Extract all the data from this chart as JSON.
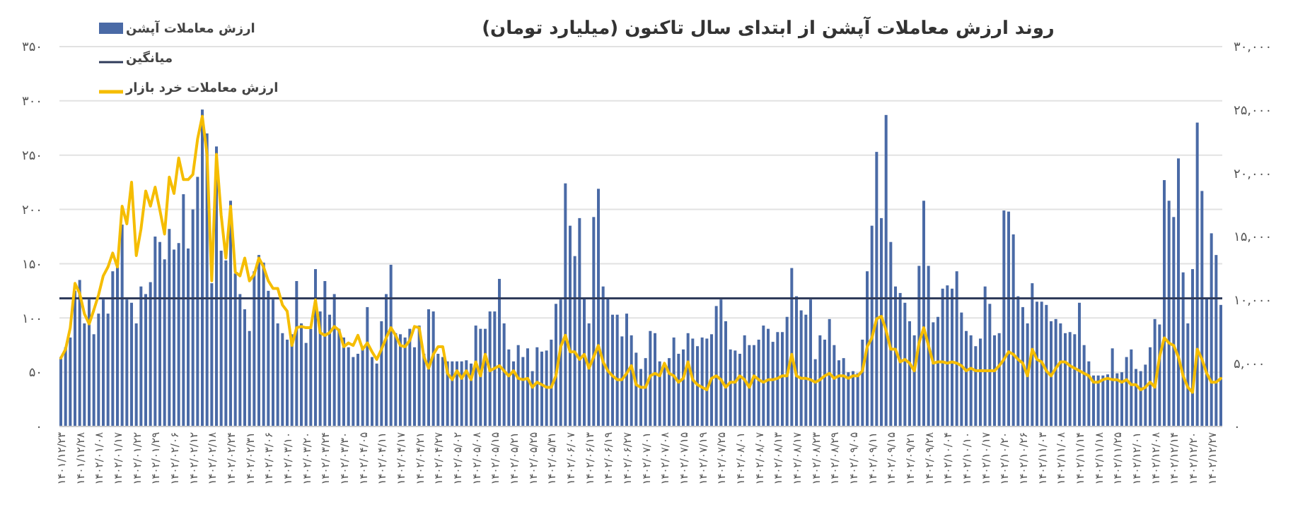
{
  "chart_data": {
    "type": "bar",
    "title": "روند ارزش معاملات آپشن از ابتدای سال تاکنون (میلیارد تومان)",
    "categories": [
      "۱۴۰۱/۱۲/۲۳",
      null,
      null,
      null,
      "۱۴۰۱/۱۲/۲۸",
      null,
      null,
      null,
      "۱۴۰۲/۰۱/۰۸",
      null,
      null,
      null,
      "۱۴۰۲/۰۱/۱۷",
      null,
      null,
      null,
      "۱۴۰۲/۰۱/۲۲",
      null,
      null,
      null,
      "۱۴۰۲/۰۱/۲۹",
      null,
      null,
      null,
      "۱۴۰۲/۰۲/۰۶",
      null,
      null,
      null,
      "۱۴۰۲/۰۲/۱۲",
      null,
      null,
      null,
      "۱۴۰۲/۰۲/۱۸",
      null,
      null,
      null,
      "۱۴۰۲/۰۲/۲۴",
      null,
      null,
      null,
      "۱۴۰۲/۰۲/۳۱",
      null,
      null,
      null,
      "۱۴۰۲/۰۳/۰۶",
      null,
      null,
      null,
      "۱۴۰۲/۰۳/۱۰",
      null,
      null,
      null,
      "۱۴۰۲/۰۳/۲۰",
      null,
      null,
      null,
      "۱۴۰۲/۰۳/۲۴",
      null,
      null,
      null,
      "۱۴۰۲/۰۳/۳۰",
      null,
      null,
      null,
      "۱۴۰۲/۰۴/۰۵",
      null,
      null,
      null,
      "۱۴۰۲/۰۴/۱۱",
      null,
      null,
      null,
      "۱۴۰۲/۰۴/۱۷",
      null,
      null,
      null,
      "۱۴۰۲/۰۴/۲۱",
      null,
      null,
      null,
      "۱۴۰۲/۰۴/۲۷",
      null,
      null,
      null,
      "۱۴۰۲/۰۵/۰۲",
      null,
      null,
      null,
      "۱۴۰۲/۰۵/۰۸",
      null,
      null,
      null,
      "۱۴۰۲/۰۵/۱۵",
      null,
      null,
      null,
      "۱۴۰۲/۰۵/۲۱",
      null,
      null,
      null,
      "۱۴۰۲/۰۵/۲۵",
      null,
      null,
      null,
      "۱۴۰۲/۰۵/۳۱",
      null,
      null,
      null,
      "۱۴۰۲/۰۶/۰۷",
      null,
      null,
      null,
      "۱۴۰۲/۰۶/۱۳",
      null,
      null,
      null,
      "۱۴۰۲/۰۶/۱۹",
      null,
      null,
      null,
      "۱۴۰۲/۰۶/۲۷",
      null,
      null,
      null,
      "۱۴۰۲/۰۷/۰۱",
      null,
      null,
      null,
      "۱۴۰۲/۰۷/۰۸",
      null,
      null,
      null,
      "۱۴۰۲/۰۷/۱۵",
      null,
      null,
      null,
      "۱۴۰۲/۰۷/۱۹",
      null,
      null,
      null,
      "۱۴۰۲/۰۷/۲۵",
      null,
      null,
      null,
      "۱۴۰۲/۰۸/۰۱",
      null,
      null,
      null,
      "۱۴۰۲/۰۸/۰۷",
      null,
      null,
      null,
      "۱۴۰۲/۰۸/۱۳",
      null,
      null,
      null,
      "۱۴۰۲/۰۸/۱۷",
      null,
      null,
      null,
      "۱۴۰۲/۰۸/۲۳",
      null,
      null,
      null,
      "۱۴۰۲/۰۸/۲۹",
      null,
      null,
      null,
      "۱۴۰۲/۰۹/۰۵",
      null,
      null,
      null,
      "۱۴۰۲/۰۹/۱۱",
      null,
      null,
      null,
      "۱۴۰۲/۰۹/۱۵",
      null,
      null,
      null,
      "۱۴۰۲/۰۹/۲۱",
      null,
      null,
      null,
      "۱۴۰۲/۰۹/۲۸",
      null,
      null,
      null,
      "۱۴۰۲/۱۰/۰۴",
      null,
      null,
      null,
      "۱۴۰۲/۱۰/۱۰",
      null,
      null,
      null,
      "۱۴۰۲/۱۰/۱۷",
      null,
      null,
      null,
      "۱۴۰۲/۱۰/۲۰",
      null,
      null,
      null,
      "۱۴۰۲/۱۰/۲۶",
      null,
      null,
      null,
      "۱۴۰۲/۱۱/۰۳",
      null,
      null,
      null,
      "۱۴۰۲/۱۱/۰۸",
      null,
      null,
      null,
      "۱۴۰۲/۱۱/۱۴",
      null,
      null,
      null,
      "۱۴۰۲/۱۱/۱۸",
      null,
      null,
      null,
      "۱۴۰۲/۱۱/۲۵",
      null,
      null,
      null,
      "۱۴۰۲/۱۲/۰۱",
      null,
      null,
      null,
      "۱۴۰۲/۱۲/۰۸",
      null,
      null,
      null,
      "۱۴۰۲/۱۲/۱۴",
      null,
      null,
      null,
      "۱۴۰۲/۱۲/۲۰",
      null,
      null,
      null,
      "۱۴۰۲/۱۲/۲۷",
      null,
      null
    ],
    "series": [
      {
        "name": "ارزش معاملات آپشن",
        "color": "#4a6aa6",
        "values": [
          64,
          73,
          82,
          125,
          135,
          95,
          117,
          85,
          104,
          117,
          104,
          143,
          151,
          186,
          117,
          114,
          95,
          129,
          122,
          133,
          175,
          170,
          154,
          182,
          163,
          169,
          214,
          164,
          200,
          230,
          292,
          270,
          132,
          258,
          162,
          153,
          208,
          141,
          122,
          108,
          88,
          143,
          158,
          151,
          125,
          117,
          95,
          86,
          80,
          85,
          134,
          95,
          77,
          90,
          145,
          106,
          134,
          103,
          122,
          90,
          82,
          73,
          64,
          67,
          73,
          110,
          64,
          58,
          97,
          122,
          149,
          86,
          85,
          82,
          90,
          73,
          93,
          67,
          108,
          106,
          67,
          64,
          60,
          60,
          60,
          60,
          61,
          58,
          93,
          90,
          90,
          106,
          106,
          136,
          95,
          71,
          60,
          75,
          64,
          72,
          51,
          73,
          69,
          70,
          80,
          113,
          117,
          224,
          185,
          157,
          192,
          119,
          95,
          193,
          219,
          129,
          118,
          103,
          103,
          83,
          104,
          84,
          68,
          53,
          63,
          88,
          86,
          60,
          58,
          63,
          82,
          67,
          71,
          86,
          81,
          74,
          82,
          81,
          85,
          111,
          117,
          97,
          71,
          70,
          67,
          84,
          75,
          75,
          80,
          93,
          90,
          78,
          87,
          87,
          101,
          146,
          120,
          107,
          103,
          117,
          62,
          84,
          80,
          99,
          75,
          61,
          63,
          50,
          51,
          49,
          80,
          143,
          185,
          253,
          192,
          287,
          170,
          129,
          123,
          114,
          97,
          84,
          148,
          208,
          148,
          96,
          101,
          127,
          130,
          127,
          143,
          105,
          88,
          84,
          74,
          81,
          129,
          113,
          84,
          86,
          199,
          198,
          177,
          120,
          110,
          95,
          132,
          115,
          115,
          112,
          97,
          99,
          95,
          86,
          87,
          85,
          114,
          75,
          60,
          47,
          47,
          47,
          48,
          72,
          49,
          50,
          64,
          71,
          53,
          51,
          57,
          73,
          99,
          94,
          227,
          208,
          193,
          247,
          142,
          95,
          145,
          280,
          217,
          119,
          178,
          158,
          112
        ]
      },
      {
        "name": "ارزش معاملات خرد بازار",
        "type": "line",
        "axis": "y2",
        "color": "#f5bd00",
        "values": [
          5400,
          6100,
          7800,
          11300,
          10500,
          8900,
          8100,
          9200,
          10400,
          11900,
          12600,
          13700,
          12600,
          17400,
          16000,
          19300,
          13500,
          15600,
          18600,
          17400,
          18900,
          17100,
          15200,
          19700,
          18400,
          21200,
          19500,
          19500,
          19900,
          22700,
          24500,
          21500,
          11500,
          21500,
          16700,
          13300,
          17400,
          12200,
          11900,
          13300,
          11500,
          12000,
          13300,
          12600,
          11500,
          10900,
          10900,
          9600,
          9100,
          6400,
          7800,
          7900,
          7800,
          7800,
          10000,
          7400,
          7200,
          7400,
          7900,
          7600,
          6300,
          6600,
          6400,
          7200,
          6100,
          6600,
          5900,
          5300,
          6100,
          7000,
          7800,
          7200,
          6400,
          6300,
          6800,
          7900,
          7800,
          5500,
          4600,
          5700,
          6300,
          6300,
          4200,
          3700,
          4400,
          3800,
          4400,
          3700,
          5100,
          4000,
          5700,
          4400,
          4600,
          4800,
          4400,
          4000,
          4400,
          3800,
          3700,
          3800,
          3100,
          3500,
          3300,
          3100,
          3100,
          4000,
          6300,
          7200,
          5900,
          5900,
          5300,
          5700,
          4600,
          5500,
          6400,
          5100,
          4400,
          4000,
          3700,
          3700,
          4200,
          4800,
          3300,
          3100,
          3100,
          4000,
          4200,
          4000,
          5000,
          4200,
          4000,
          3500,
          3800,
          5100,
          3700,
          3300,
          3100,
          2900,
          3800,
          4000,
          3700,
          3100,
          3500,
          3500,
          4000,
          3700,
          3100,
          4000,
          3700,
          3500,
          3700,
          3700,
          3800,
          4000,
          4000,
          5700,
          4000,
          3800,
          3800,
          3700,
          3500,
          3700,
          4000,
          4200,
          3800,
          4000,
          4000,
          3800,
          4000,
          4000,
          4400,
          6300,
          7000,
          8500,
          8700,
          7600,
          6100,
          6100,
          5100,
          5300,
          5000,
          4400,
          6600,
          7800,
          6400,
          5000,
          5100,
          5100,
          5000,
          5100,
          5000,
          4800,
          4400,
          4600,
          4400,
          4400,
          4400,
          4400,
          4400,
          4800,
          5300,
          5900,
          5700,
          5300,
          5000,
          4000,
          6100,
          5300,
          5100,
          4400,
          4000,
          4600,
          5100,
          5100,
          4800,
          4600,
          4400,
          4200,
          4000,
          3500,
          3500,
          3700,
          3800,
          3700,
          3700,
          3500,
          3700,
          3300,
          3300,
          2900,
          3100,
          3500,
          3100,
          5500,
          7000,
          6600,
          6400,
          5500,
          4000,
          3100,
          2700,
          6100,
          5300,
          4200,
          3500,
          3500,
          3800
        ]
      }
    ],
    "ref_lines": [
      {
        "axis": "y",
        "value": 118,
        "label": "میانگین",
        "color": "#2f3b5a"
      }
    ],
    "ylim": [
      0,
      350
    ],
    "yticks": [
      {
        "value": 0,
        "label": "۰"
      },
      {
        "value": 50,
        "label": "۵۰"
      },
      {
        "value": 100,
        "label": "۱۰۰"
      },
      {
        "value": 150,
        "label": "۱۵۰"
      },
      {
        "value": 200,
        "label": "۲۰۰"
      },
      {
        "value": 250,
        "label": "۲۵۰"
      },
      {
        "value": 300,
        "label": "۳۰۰"
      },
      {
        "value": 350,
        "label": "۳۵۰"
      }
    ],
    "y2lim": [
      0,
      30000
    ],
    "y2ticks": [
      {
        "value": 0,
        "label": "۰"
      },
      {
        "value": 5000,
        "label": "۵,۰۰۰"
      },
      {
        "value": 10000,
        "label": "۱۰,۰۰۰"
      },
      {
        "value": 15000,
        "label": "۱۵,۰۰۰"
      },
      {
        "value": 20000,
        "label": "۲۰,۰۰۰"
      },
      {
        "value": 25000,
        "label": "۲۵,۰۰۰"
      },
      {
        "value": 30000,
        "label": "۳۰,۰۰۰"
      }
    ],
    "grid": "y",
    "legend": "top left"
  }
}
